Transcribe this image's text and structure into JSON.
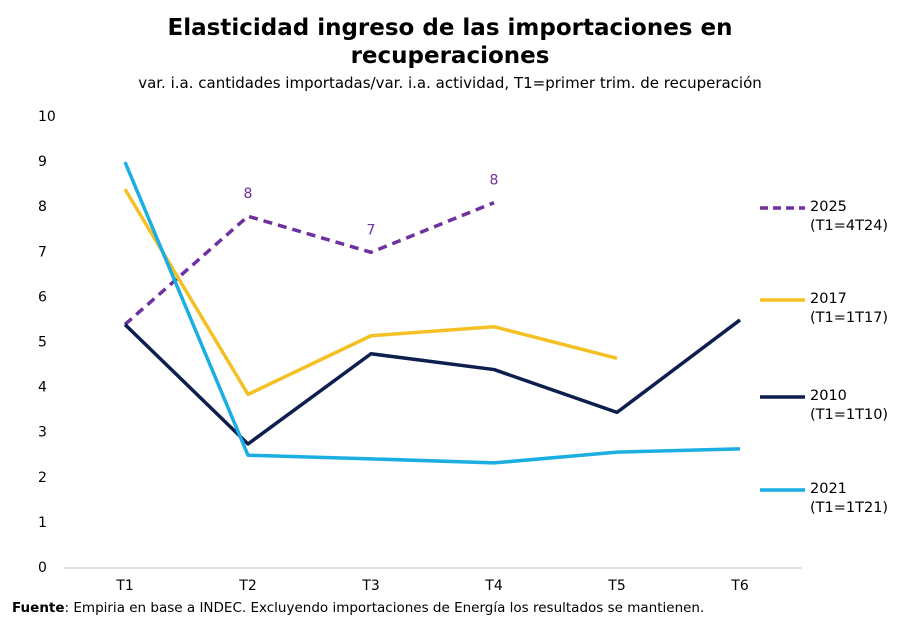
{
  "chart_data": {
    "type": "line",
    "title": "Elasticidad ingreso de las importaciones en recuperaciones",
    "subtitle": "var. i.a. cantidades importadas/var. i.a. actividad, T1=primer trim. de recuperación",
    "categories": [
      "T1",
      "T2",
      "T3",
      "T4",
      "T5",
      "T6"
    ],
    "series": [
      {
        "name": "2025 (T1=4T24)",
        "color": "#7030a0",
        "dashed": true,
        "values": [
          5.4,
          7.8,
          7.0,
          8.1,
          null,
          null
        ],
        "value_labels": [
          null,
          "8",
          "7",
          "8",
          null,
          null
        ]
      },
      {
        "name": "2017 (T1=1T17)",
        "color": "#f5c024",
        "values": [
          8.4,
          3.85,
          5.15,
          5.35,
          4.65,
          null
        ]
      },
      {
        "name": "2010 (T1=1T10)",
        "color": "#0d1f4f",
        "values": [
          5.4,
          2.75,
          4.75,
          4.4,
          3.45,
          5.5
        ]
      },
      {
        "name": "2021 (T1=1T21)",
        "color": "#1aaee3",
        "values": [
          9.0,
          2.5,
          2.42,
          2.33,
          2.57,
          2.64
        ]
      }
    ],
    "ylim": [
      0,
      10
    ],
    "yticks": [
      0,
      1,
      2,
      3,
      4,
      5,
      6,
      7,
      8,
      9,
      10
    ],
    "grid": false,
    "source": {
      "label": "Fuente",
      "text": ": Empiria en base a INDEC. Excluyendo importaciones de Energía los resultados se mantienen."
    }
  }
}
